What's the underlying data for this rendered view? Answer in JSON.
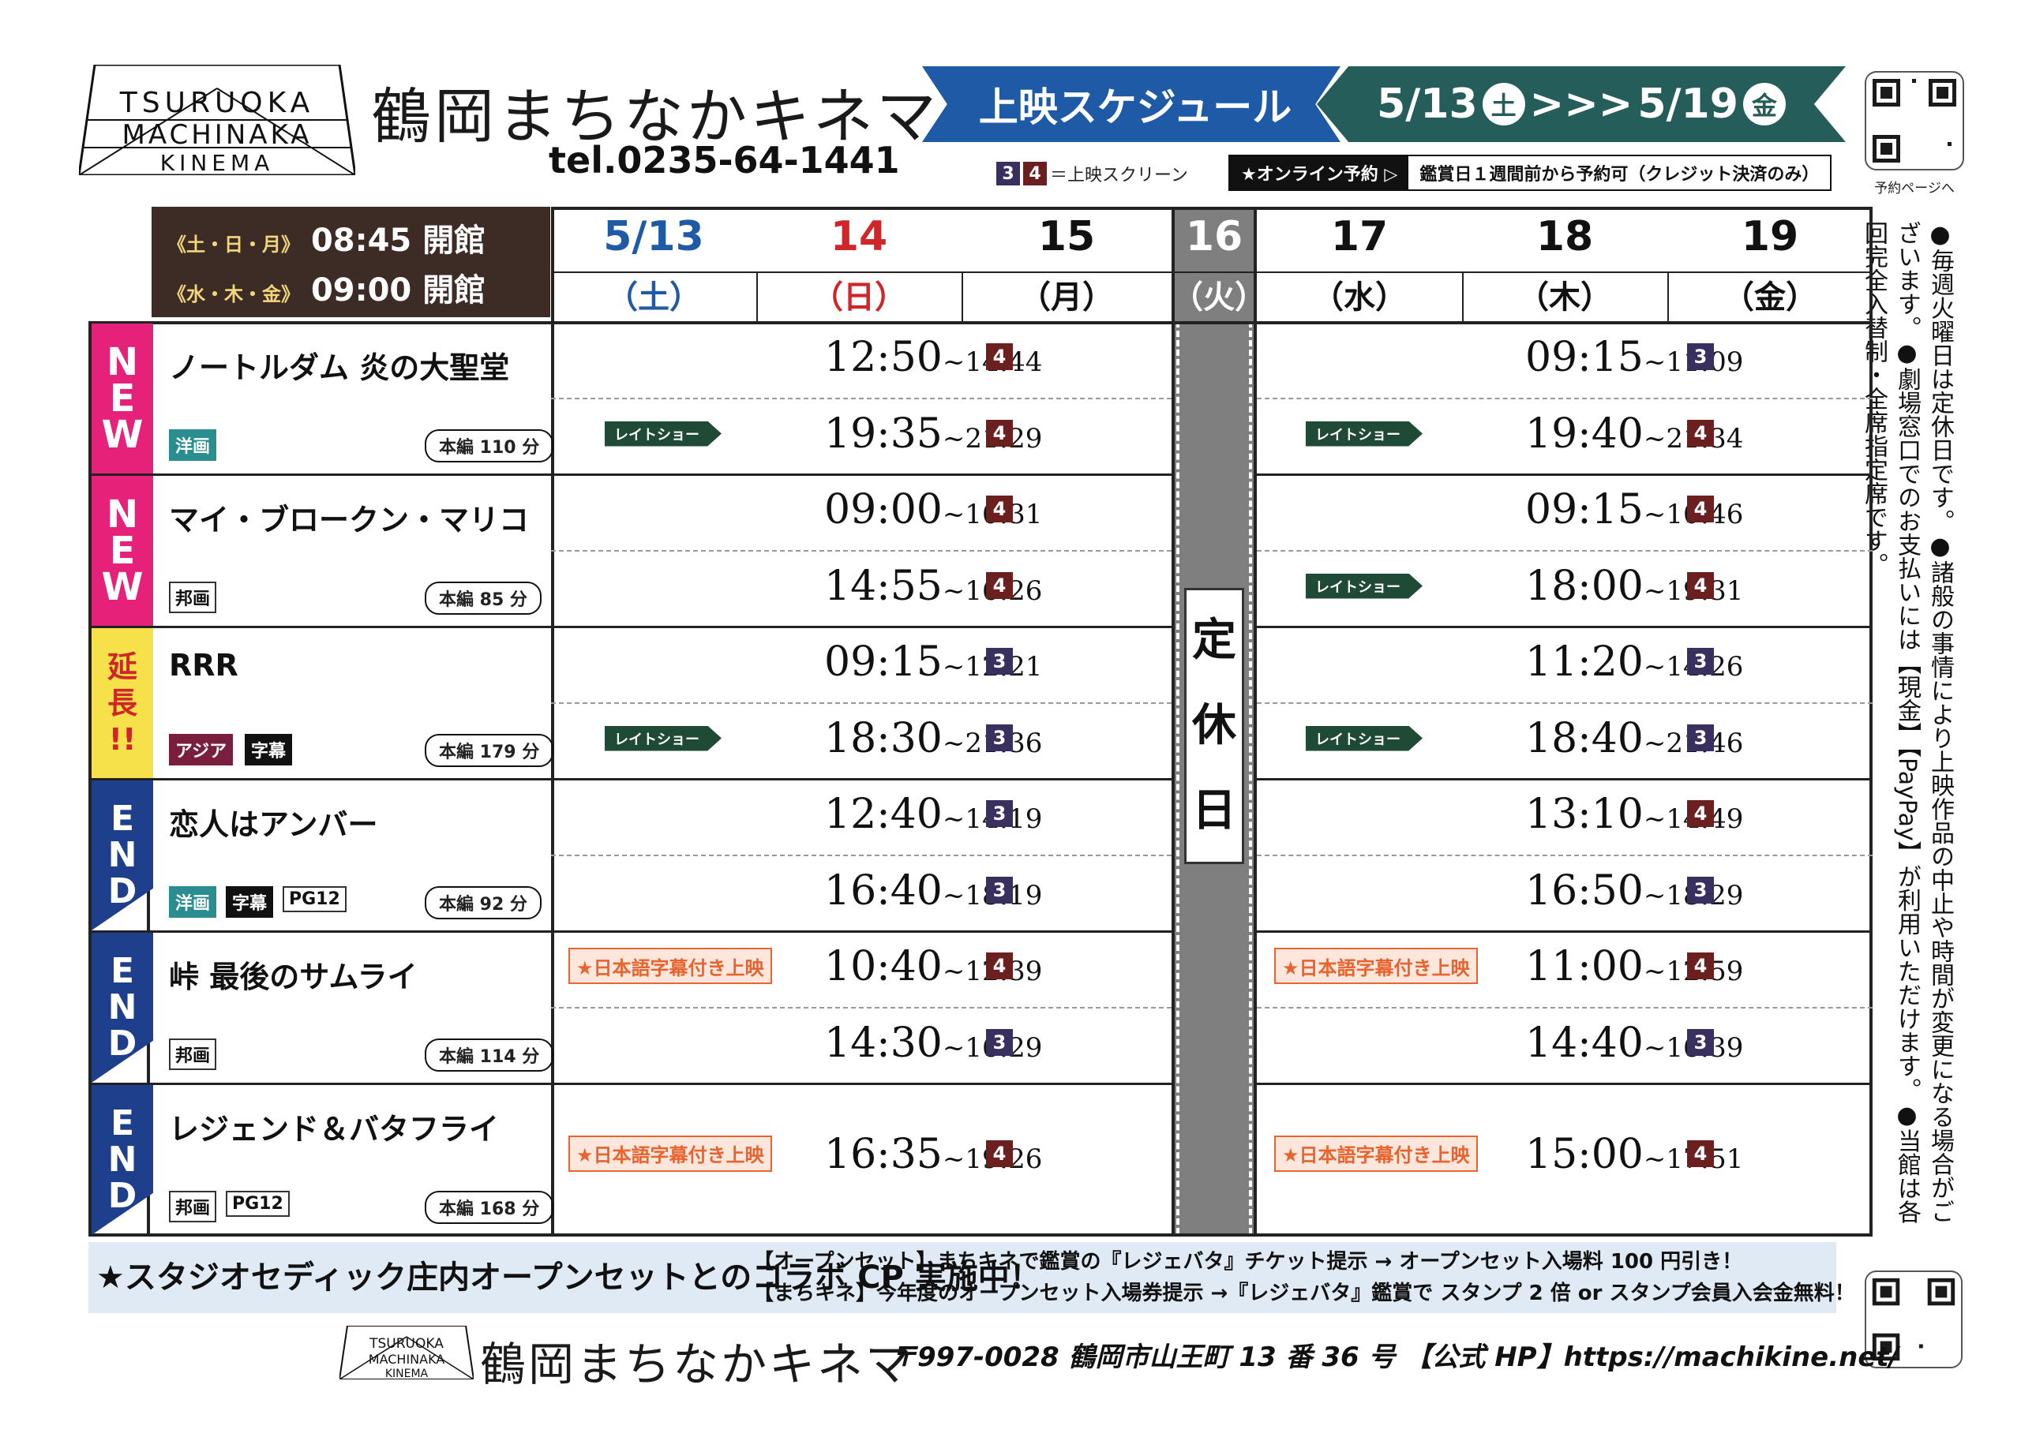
{
  "header": {
    "logo_text": "TSURUOKA MACHINAKA KINEMA",
    "title": "鶴岡まちなかキネマ",
    "tel": "tel.0235-64-1441",
    "schedule_label": "上映スケジュール",
    "period_start": "5/13",
    "period_start_day": "土",
    "period_sep": ">>>",
    "period_end": "5/19",
    "period_end_day": "金",
    "qr_caption": "予約ページへ",
    "legend_screen3": "3",
    "legend_screen4": "4",
    "legend_label": "＝上映スクリーン",
    "online_label": "★オンライン予約 ▷",
    "online_note": "鑑賞日１週間前から予約可（クレジット決済のみ）"
  },
  "hours": {
    "line1_days": "《土・日・月》",
    "line1_time": "08:45 開館",
    "line2_days": "《水・木・金》",
    "line2_time": "09:00 開館"
  },
  "days": [
    {
      "num": "5/13",
      "day": "（土）",
      "color": "#1e5aa6"
    },
    {
      "num": "14",
      "day": "（日）",
      "color": "#d0262a"
    },
    {
      "num": "15",
      "day": "（月）",
      "color": "#111111"
    },
    {
      "num": "16",
      "day": "（火）",
      "color": "#ffffff"
    },
    {
      "num": "17",
      "day": "（水）",
      "color": "#111111"
    },
    {
      "num": "18",
      "day": "（木）",
      "color": "#111111"
    },
    {
      "num": "19",
      "day": "（金）",
      "color": "#111111"
    }
  ],
  "closed_label": [
    "定",
    "休",
    "日"
  ],
  "late_show": "レイトショー",
  "subtitle_show": "★日本語字幕付き上映",
  "movies": [
    {
      "tag": "NEW",
      "title": "ノートルダム 炎の大聖堂",
      "cats": [
        "洋画"
      ],
      "length": "本編 110 分",
      "early": [
        {
          "start": "12:50",
          "end": "~14:44",
          "screen": "4"
        },
        {
          "start": "19:35",
          "end": "~21:29",
          "screen": "4",
          "late": true
        }
      ],
      "later": [
        {
          "start": "09:15",
          "end": "~11:09",
          "screen": "3"
        },
        {
          "start": "19:40",
          "end": "~21:34",
          "screen": "4",
          "late": true
        }
      ]
    },
    {
      "tag": "NEW",
      "title": "マイ・ブロークン・マリコ",
      "cats": [
        "邦画"
      ],
      "length": "本編 85 分",
      "early": [
        {
          "start": "09:00",
          "end": "~10:31",
          "screen": "4"
        },
        {
          "start": "14:55",
          "end": "~16:26",
          "screen": "4"
        }
      ],
      "later": [
        {
          "start": "09:15",
          "end": "~10:46",
          "screen": "4"
        },
        {
          "start": "18:00",
          "end": "~19:31",
          "screen": "4",
          "late": true
        }
      ]
    },
    {
      "tag": "延長!!",
      "title": "RRR",
      "cats": [
        "アジア",
        "字幕"
      ],
      "length": "本編 179 分",
      "early": [
        {
          "start": "09:15",
          "end": "~12:21",
          "screen": "3"
        },
        {
          "start": "18:30",
          "end": "~21:36",
          "screen": "3",
          "late": true
        }
      ],
      "later": [
        {
          "start": "11:20",
          "end": "~14:26",
          "screen": "3"
        },
        {
          "start": "18:40",
          "end": "~21:46",
          "screen": "3",
          "late": true
        }
      ]
    },
    {
      "tag": "END",
      "title": "恋人はアンバー",
      "cats": [
        "洋画",
        "字幕",
        "PG12"
      ],
      "length": "本編 92 分",
      "early": [
        {
          "start": "12:40",
          "end": "~14:19",
          "screen": "3"
        },
        {
          "start": "16:40",
          "end": "~18:19",
          "screen": "3"
        }
      ],
      "later": [
        {
          "start": "13:10",
          "end": "~14:49",
          "screen": "4"
        },
        {
          "start": "16:50",
          "end": "~18:29",
          "screen": "3"
        }
      ]
    },
    {
      "tag": "END",
      "title": "峠 最後のサムライ",
      "cats": [
        "邦画"
      ],
      "length": "本編 114 分",
      "early": [
        {
          "start": "10:40",
          "end": "~12:39",
          "screen": "4",
          "subt": true
        },
        {
          "start": "14:30",
          "end": "~16:29",
          "screen": "3"
        }
      ],
      "later": [
        {
          "start": "11:00",
          "end": "~12:59",
          "screen": "4",
          "subt": true
        },
        {
          "start": "14:40",
          "end": "~16:39",
          "screen": "3"
        }
      ]
    },
    {
      "tag": "END",
      "title": "レジェンド＆バタフライ",
      "cats": [
        "邦画",
        "PG12"
      ],
      "length": "本編 168 分",
      "early": [
        {
          "start": "16:35",
          "end": "~19:26",
          "screen": "4",
          "subt": true
        }
      ],
      "later": [
        {
          "start": "15:00",
          "end": "~17:51",
          "screen": "4",
          "subt": true
        }
      ]
    }
  ],
  "side_note": "●毎週火曜日は定休日です。●諸般の事情により上映作品の中止や時間が変更になる場合がございます。●劇場窓口でのお支払いには【現金】【PayPay】が利用いただけます。●当館は各回完全入替制・全席指定席です。",
  "collab": {
    "title": "★スタジオセディック庄内オープンセットとのコラボ CP 実施中！",
    "line1": "【オープンセット】まちキネで鑑賞の『レジェバタ』チケット提示 → オープンセット入場料 100 円引き！",
    "line2": "【まちキネ】今年度のオープンセット入場券提示 →『レジェバタ』鑑賞で スタンプ 2 倍 or スタンプ会員入会金無料！"
  },
  "footer": {
    "title": "鶴岡まちなかキネマ",
    "address": "〒997-0028  鶴岡市山王町 13 番 36 号 【公式 HP】https://machikine.net/"
  },
  "colors": {
    "screen3": "#3a3060",
    "screen4": "#6b1f1f",
    "new": "#e5217a",
    "end": "#1e3f8c",
    "extended": "#f7e14a",
    "banner_blue": "#1e5aa6",
    "banner_green": "#245d5a",
    "late": "#1f4a36",
    "subtitle": "#e8632e"
  }
}
